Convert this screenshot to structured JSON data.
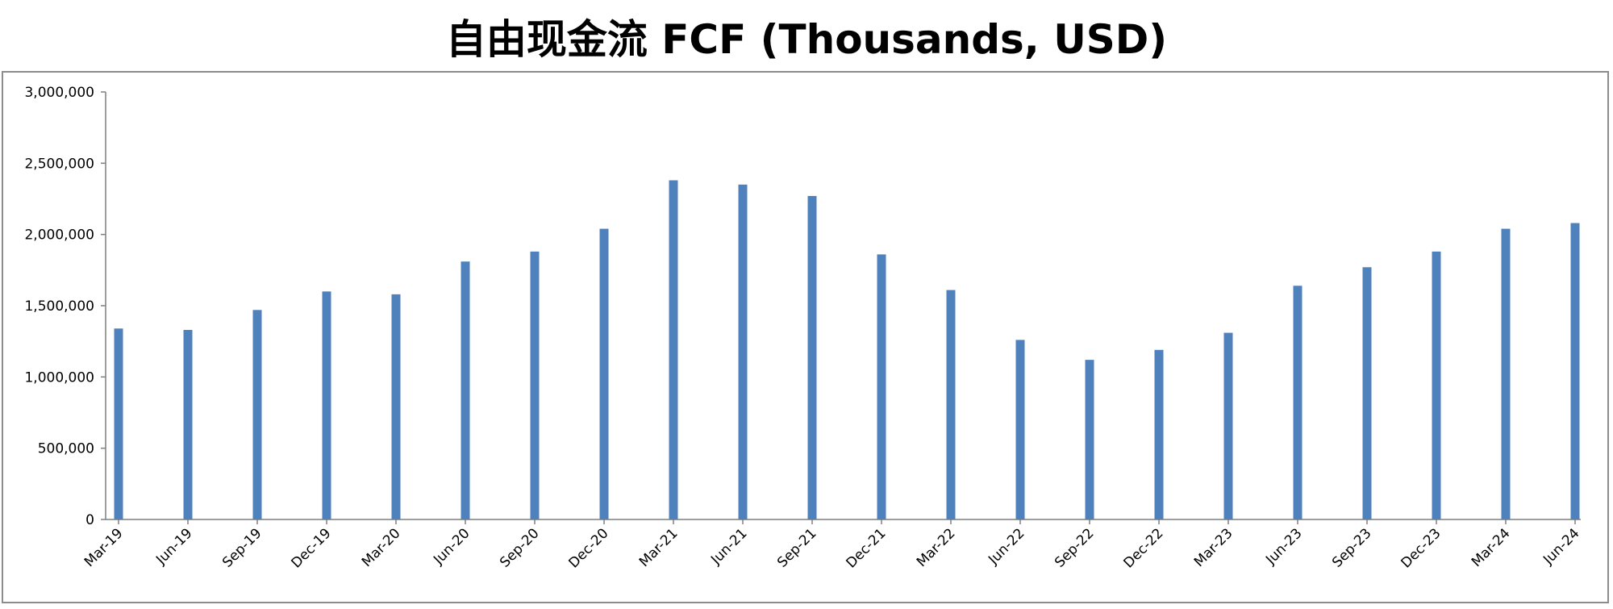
{
  "chart_data": {
    "type": "bar",
    "title": "自由现金流 FCF (Thousands, USD)",
    "xlabel": "",
    "ylabel": "",
    "ylim": [
      0,
      3000000
    ],
    "yticks": [
      "0",
      "500,000",
      "1,000,000",
      "1,500,000",
      "2,000,000",
      "2,500,000",
      "3,000,000"
    ],
    "grid": false,
    "legend": "none",
    "bar_color": "#4f81bd",
    "categories": [
      "Mar-19",
      "Jun-19",
      "Sep-19",
      "Dec-19",
      "Mar-20",
      "Jun-20",
      "Sep-20",
      "Dec-20",
      "Mar-21",
      "Jun-21",
      "Sep-21",
      "Dec-21",
      "Mar-22",
      "Jun-22",
      "Sep-22",
      "Dec-22",
      "Mar-23",
      "Jun-23",
      "Sep-23",
      "Dec-23",
      "Mar-24",
      "Jun-24"
    ],
    "values": [
      1340000,
      1330000,
      1470000,
      1600000,
      1580000,
      1810000,
      1880000,
      2040000,
      2380000,
      2350000,
      2270000,
      1860000,
      1610000,
      1260000,
      1120000,
      1190000,
      1310000,
      1640000,
      1770000,
      1880000,
      2040000,
      2080000
    ]
  }
}
